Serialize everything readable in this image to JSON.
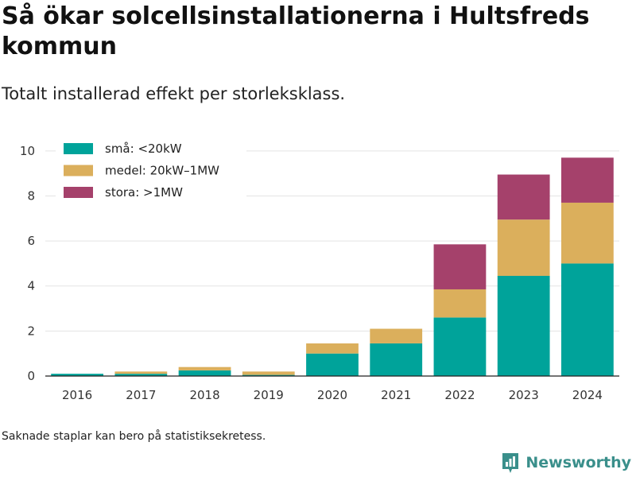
{
  "header": {
    "title": "Så ökar solcellsinstallationerna i Hultsfreds kommun",
    "subtitle": "Totalt installerad effekt per storleksklass."
  },
  "footer": {
    "note": "Saknade staplar kan bero på statistiksekretess.",
    "brand": "Newsworthy",
    "brand_icon": "newsworthy-logo-icon"
  },
  "chart_data": {
    "type": "bar",
    "stacked": true,
    "title": "",
    "xlabel": "",
    "ylabel": "",
    "categories": [
      "2016",
      "2017",
      "2018",
      "2019",
      "2020",
      "2021",
      "2022",
      "2023",
      "2024"
    ],
    "series": [
      {
        "name": "små: <20kW",
        "color": "#00a39a",
        "values": [
          0.1,
          0.1,
          0.25,
          0.05,
          1.0,
          1.45,
          2.6,
          4.45,
          5.0
        ]
      },
      {
        "name": "medel: 20kW–1MW",
        "color": "#dbaf5c",
        "values": [
          0.0,
          0.1,
          0.15,
          0.15,
          0.45,
          0.65,
          1.25,
          2.5,
          2.7
        ]
      },
      {
        "name": "stora: >1MW",
        "color": "#a5416b",
        "values": [
          0,
          0,
          0,
          0,
          0,
          0,
          2.0,
          2.0,
          2.0
        ]
      }
    ],
    "ylim": [
      0,
      10.7
    ],
    "yticks": [
      0,
      2,
      4,
      6,
      8,
      10
    ],
    "grid": true,
    "legend": "top-left"
  }
}
